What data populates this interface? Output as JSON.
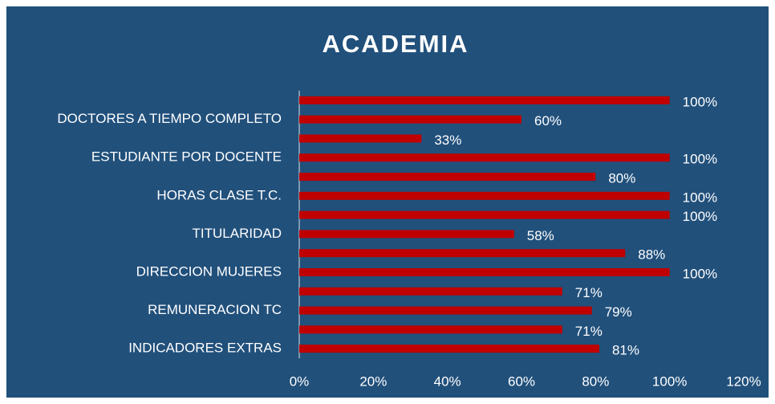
{
  "chart_data": {
    "type": "bar",
    "orientation": "horizontal",
    "title": "ACADEMIA",
    "categories": [
      null,
      "DOCTORES A TIEMPO COMPLETO",
      null,
      "ESTUDIANTE POR DOCENTE",
      null,
      "HORAS CLASE T.C.",
      null,
      "TITULARIDAD",
      null,
      "DIRECCION MUJERES",
      null,
      "REMUNERACION TC",
      null,
      "INDICADORES EXTRAS"
    ],
    "values": [
      100,
      60,
      33,
      100,
      80,
      100,
      100,
      58,
      88,
      100,
      71,
      79,
      71,
      81
    ],
    "value_labels": [
      "100%",
      "60%",
      "33%",
      "100%",
      "80%",
      "100%",
      "100%",
      "58%",
      "88%",
      "100%",
      "71%",
      "79%",
      "71%",
      "81%"
    ],
    "color": "#c00000",
    "xlim": [
      0,
      120
    ],
    "xticks": [
      {
        "value": 0,
        "label": "0%"
      },
      {
        "value": 20,
        "label": "20%"
      },
      {
        "value": 40,
        "label": "40%"
      },
      {
        "value": 60,
        "label": "60%"
      },
      {
        "value": 80,
        "label": "80%"
      },
      {
        "value": 100,
        "label": "100%"
      },
      {
        "value": 120,
        "label": "120%"
      }
    ],
    "grid": false
  }
}
